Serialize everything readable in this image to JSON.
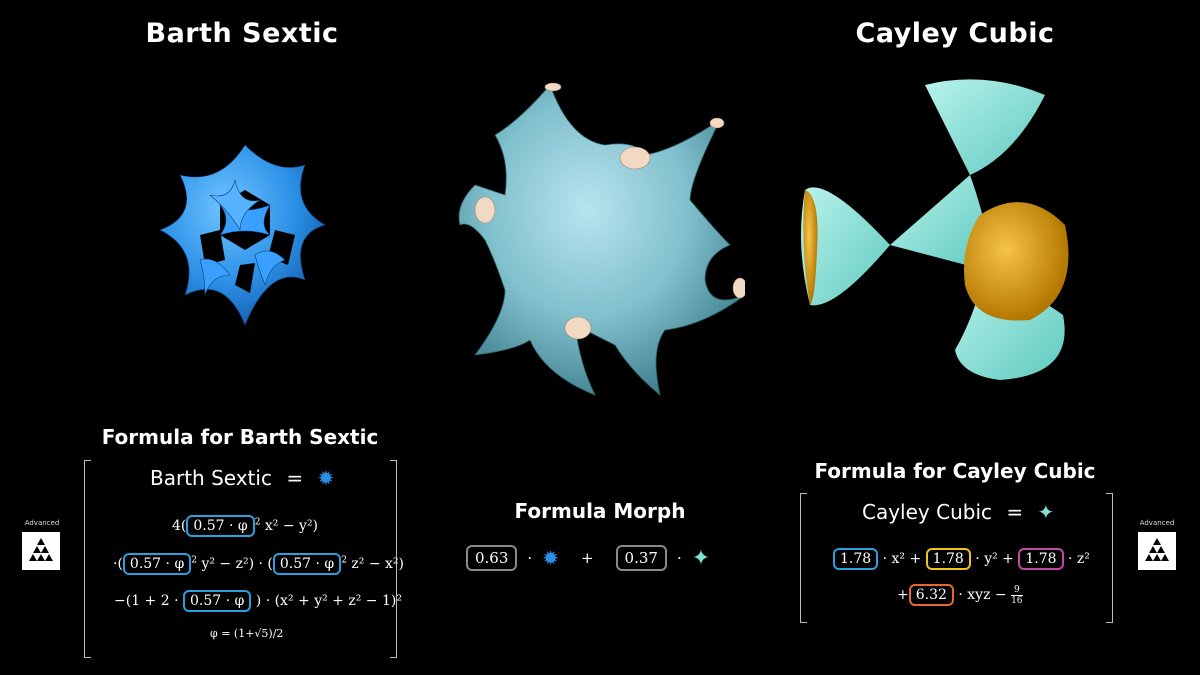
{
  "left": {
    "title": "Barth Sextic",
    "formula_title": "Formula for Barth Sextic",
    "lhs": "Barth Sextic",
    "eq": "=",
    "coef_label": "0.57 · φ",
    "line1_pre": "4(",
    "line1_post": "x² − y²)",
    "line2_pre": "·(",
    "line2_mid": "y² − z²) · (",
    "line2_post": "z² − x²)",
    "line3_pre": "−(1 + 2 ·",
    "line3_post": ") · (x² + y² + z² − 1)²",
    "phi_def": "φ = (1+√5)/2"
  },
  "center": {
    "formula_title": "Formula Morph",
    "weight_a": "0.63",
    "weight_b": "0.37",
    "dot": "·",
    "plus": "+"
  },
  "right": {
    "title": "Cayley Cubic",
    "formula_title": "Formula for Cayley Cubic",
    "lhs": "Cayley Cubic",
    "eq": "=",
    "c1": "1.78",
    "c2": "1.78",
    "c3": "1.78",
    "c4": "6.32",
    "t1": "· x² +",
    "t2": "· y² +",
    "t3": "· z²",
    "plus": "+",
    "t4": "· xyz −",
    "frac_num": "9",
    "frac_den": "16"
  },
  "badges": {
    "left_label": "Advanced",
    "right_label": "Advanced"
  },
  "colors": {
    "barth": "#2a8fe6",
    "morph": "#7fbfcc",
    "cayley_cyan": "#7fe0d6",
    "cayley_gold": "#e0a010"
  }
}
